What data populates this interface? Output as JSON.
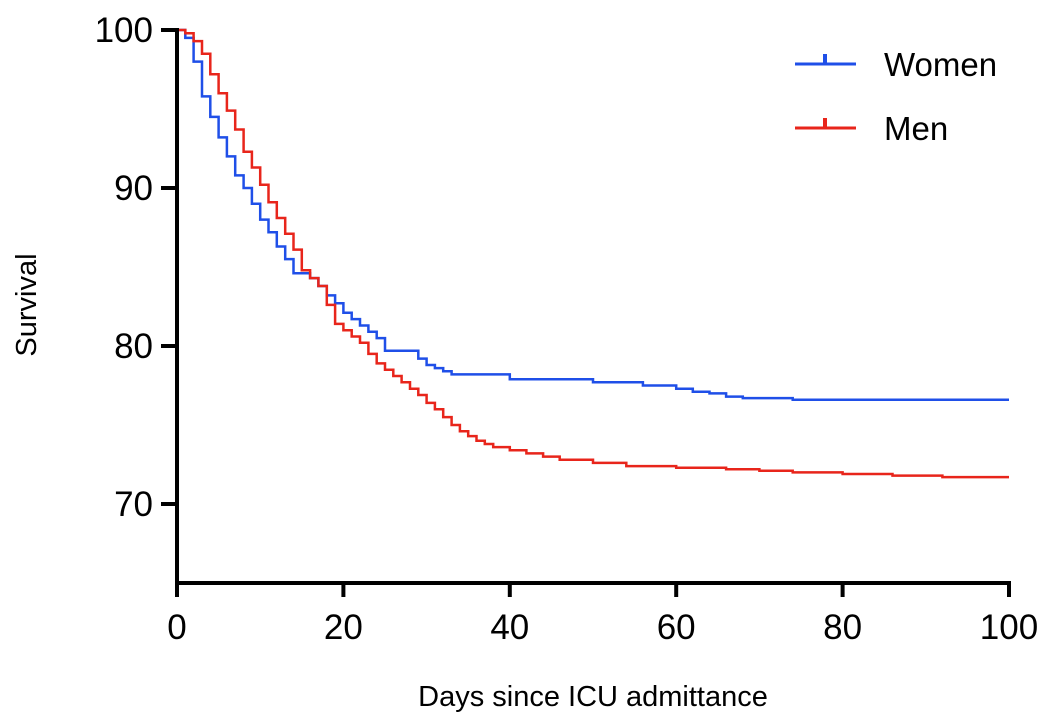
{
  "chart_data": {
    "type": "line",
    "subtype": "kaplan-meier-step",
    "title": "",
    "xlabel": "Days since ICU admittance",
    "ylabel": "Survival",
    "xlim": [
      0,
      100
    ],
    "ylim": [
      65,
      100
    ],
    "xticks": [
      0,
      20,
      40,
      60,
      80,
      100
    ],
    "yticks": [
      70,
      80,
      90,
      100
    ],
    "grid": false,
    "legend_position": "top-right",
    "series": [
      {
        "name": "Women",
        "color": "#1f4fe8",
        "points": [
          [
            0,
            100
          ],
          [
            1,
            99.5
          ],
          [
            2,
            98
          ],
          [
            3,
            95.8
          ],
          [
            4,
            94.5
          ],
          [
            5,
            93.2
          ],
          [
            6,
            92
          ],
          [
            7,
            90.8
          ],
          [
            8,
            90
          ],
          [
            9,
            89
          ],
          [
            10,
            88
          ],
          [
            11,
            87.2
          ],
          [
            12,
            86.3
          ],
          [
            13,
            85.5
          ],
          [
            14,
            84.6
          ],
          [
            16,
            84.3
          ],
          [
            17,
            83.8
          ],
          [
            18,
            83.2
          ],
          [
            19,
            82.7
          ],
          [
            20,
            82.1
          ],
          [
            21,
            81.7
          ],
          [
            22,
            81.3
          ],
          [
            23,
            80.9
          ],
          [
            24,
            80.5
          ],
          [
            25,
            79.7
          ],
          [
            29,
            79.2
          ],
          [
            30,
            78.8
          ],
          [
            31,
            78.6
          ],
          [
            32,
            78.4
          ],
          [
            33,
            78.2
          ],
          [
            40,
            77.9
          ],
          [
            50,
            77.7
          ],
          [
            56,
            77.5
          ],
          [
            60,
            77.3
          ],
          [
            62,
            77.1
          ],
          [
            64,
            77.0
          ],
          [
            66,
            76.8
          ],
          [
            68,
            76.7
          ],
          [
            74,
            76.6
          ],
          [
            100,
            76.6
          ]
        ]
      },
      {
        "name": "Men",
        "color": "#e8251b",
        "points": [
          [
            0,
            100
          ],
          [
            1,
            99.8
          ],
          [
            2,
            99.3
          ],
          [
            3,
            98.5
          ],
          [
            4,
            97.2
          ],
          [
            5,
            96
          ],
          [
            6,
            94.9
          ],
          [
            7,
            93.7
          ],
          [
            8,
            92.3
          ],
          [
            9,
            91.3
          ],
          [
            10,
            90.2
          ],
          [
            11,
            89.1
          ],
          [
            12,
            88.1
          ],
          [
            13,
            87.1
          ],
          [
            14,
            86.1
          ],
          [
            15,
            84.8
          ],
          [
            16,
            84.3
          ],
          [
            17,
            83.8
          ],
          [
            18,
            82.6
          ],
          [
            19,
            81.4
          ],
          [
            20,
            81
          ],
          [
            21,
            80.6
          ],
          [
            22,
            80.2
          ],
          [
            23,
            79.5
          ],
          [
            24,
            78.9
          ],
          [
            25,
            78.5
          ],
          [
            26,
            78.1
          ],
          [
            27,
            77.7
          ],
          [
            28,
            77.3
          ],
          [
            29,
            76.9
          ],
          [
            30,
            76.4
          ],
          [
            31,
            76
          ],
          [
            32,
            75.5
          ],
          [
            33,
            75
          ],
          [
            34,
            74.6
          ],
          [
            35,
            74.3
          ],
          [
            36,
            74
          ],
          [
            37,
            73.8
          ],
          [
            38,
            73.6
          ],
          [
            40,
            73.4
          ],
          [
            42,
            73.2
          ],
          [
            44,
            73.0
          ],
          [
            46,
            72.8
          ],
          [
            50,
            72.6
          ],
          [
            54,
            72.4
          ],
          [
            60,
            72.3
          ],
          [
            66,
            72.2
          ],
          [
            70,
            72.1
          ],
          [
            74,
            72.0
          ],
          [
            80,
            71.9
          ],
          [
            86,
            71.8
          ],
          [
            92,
            71.7
          ],
          [
            100,
            71.7
          ]
        ]
      }
    ]
  }
}
